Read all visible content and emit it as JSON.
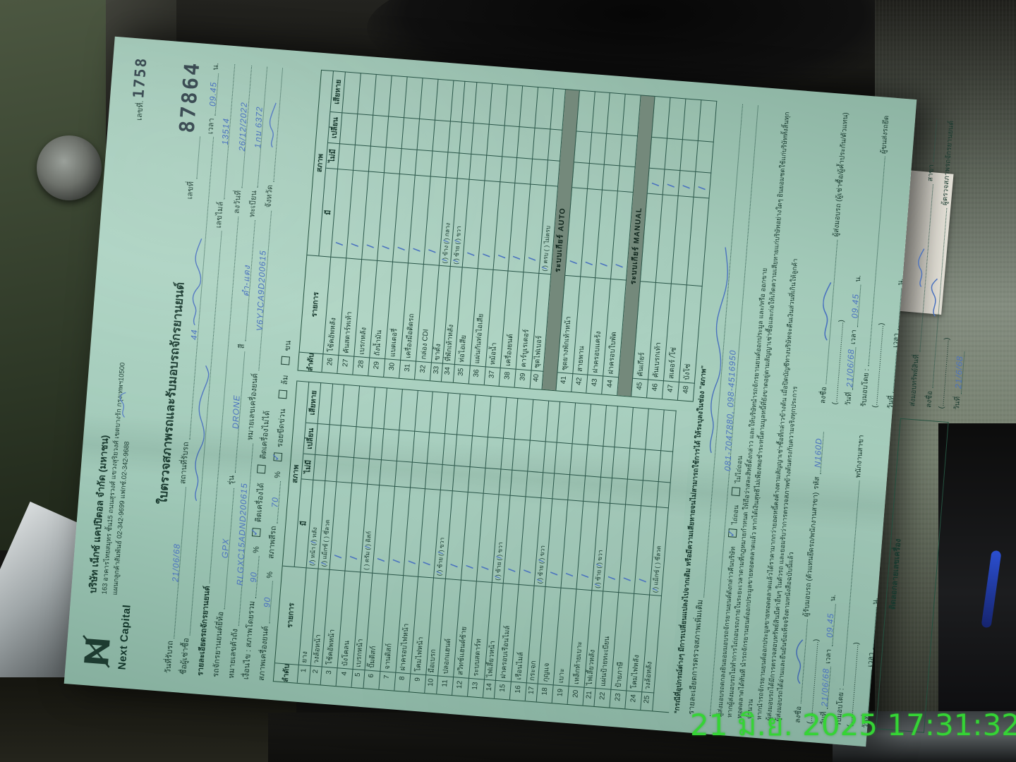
{
  "timestamp": "21 มิ.ย. 2025 17:31:32",
  "colors": {
    "paper": "#a4cbbb",
    "ink": "#17382d",
    "pen": "#4a72bf",
    "stamp": "#2c3e46",
    "timestamp": "#35d435",
    "band": "#74897b"
  },
  "header": {
    "logo_text": "Next Capital",
    "company": "บริษัท เน็กซ์ แคปปิตอล จำกัด (มหาชน)",
    "address": "163 อาคารไทยสมุทร ชั้น15 ถนนสุรวงศ์ แขวงสุริยวงศ์ เขตบางรัก กรุงเทพฯ10500",
    "phone": "แผนกลูกค้าสัมพันธ์ 02-342-9699 แฟกซ์.02-342-9688",
    "doc_no_label": "เลขที่.",
    "stamp_small": "1758",
    "title": "ใบตรวจสภาพรถและรับมอบรถจักรยานยนต์",
    "no_label": "เลขที่",
    "stamp_big": "87864"
  },
  "info": {
    "l1": {
      "a": "วันที่รับรถ",
      "av": "21/06/68",
      "b": "สถานที่รับรถ",
      "bv": "44",
      "c": "เวลา",
      "cv": "09.45",
      "d": "น."
    },
    "l2": {
      "a": "ชื่อผู้เช่าซื้อ",
      "b": "เลขไมล์",
      "bv": "13514"
    },
    "l3": {
      "a": "รายละเอียดรถจักรยานยนต์",
      "b": "ลงวันที่",
      "bv": "26/12/2022"
    },
    "l4": {
      "a": "รถจักรยานยนต์ยี่ห้อ",
      "av": "GPX",
      "b": "รุ่น",
      "bv": "DRONE",
      "c": "สี",
      "cv": "ดำ-แดง",
      "d": "ทะเบียน",
      "dv": "1กบ 6372"
    },
    "l5": {
      "a": "หมายเลขตัวถัง",
      "av": "RLGXC15ADND200615",
      "b": "หมายเลขเครื่องยนต์",
      "bv": "V6YJCA9D200615",
      "c": "จังหวัด"
    }
  },
  "condition": {
    "prefix": "เงื่อนไข : สภาพโดยรวม",
    "overall_v": "90",
    "pct": "%",
    "cb_start": "ติดเครื่องได้",
    "cb_nostart": "ติดเครื่องไม่ได้",
    "start_checked": true,
    "nostart_checked": false,
    "engine": "สภาพเครื่องยนต์",
    "engine_v": "90",
    "paint": "สภาพสีรถ",
    "paint_v": "70",
    "cb_scratch": "รอยขีดข่วน",
    "scratch_checked": true,
    "cb_fall": "ล้ม",
    "fall_checked": false,
    "cb_carry": "ขน",
    "carry_checked": false
  },
  "table": {
    "headers": {
      "no": "ลำดับ",
      "item": "รายการ",
      "cond": "สภาพ",
      "have": "มี",
      "nothave": "ไม่มี",
      "change": "เปลี่ยน",
      "damage": "เสียหาย"
    },
    "left_rows": [
      {
        "no": 1,
        "item": "ยาง",
        "opts": [
          {
            "t": "หน้า",
            "c": true
          },
          {
            "t": "หลัง",
            "c": true
          }
        ]
      },
      {
        "no": 2,
        "item": "วงล้อหน้า",
        "opts": [
          {
            "t": "แม็กซ์",
            "c": true
          },
          {
            "t": "ซี่ลวด",
            "c": false
          }
        ]
      },
      {
        "no": 3,
        "item": "โช้คอัพหน้า",
        "m": "have"
      },
      {
        "no": 4,
        "item": "บังโคลน",
        "m": "have"
      },
      {
        "no": 5,
        "item": "เบรกหน้า",
        "opts": [
          {
            "t": "ดรัม",
            "c": false
          },
          {
            "t": "ดิสก์",
            "c": true
          }
        ]
      },
      {
        "no": 6,
        "item": "ปั๊มดิสก์",
        "m": "have"
      },
      {
        "no": 7,
        "item": "จานดิสก์",
        "m": "have"
      },
      {
        "no": 8,
        "item": "ฝาครอบไฟหน้า",
        "m": "have"
      },
      {
        "no": 9,
        "item": "โคมไฟหน้า",
        "m": "have"
      },
      {
        "no": 10,
        "item": "มือเบรก",
        "opts": [
          {
            "t": "ซ้าย",
            "c": true
          },
          {
            "t": "ขวา",
            "c": true
          }
        ]
      },
      {
        "no": 11,
        "item": "ปลอกแฮนด์",
        "m": "have"
      },
      {
        "no": 12,
        "item": "สวิทช์แฮนด์ซ้าย",
        "m": "have"
      },
      {
        "no": 13,
        "item": "ระบบสตาร์ท",
        "m": "have"
      },
      {
        "no": 14,
        "item": "ไฟเลี้ยวหน้า",
        "opts": [
          {
            "t": "ซ้าย",
            "c": true
          },
          {
            "t": "ขวา",
            "c": true
          }
        ]
      },
      {
        "no": 15,
        "item": "ฝาครอบเรือนไมล์",
        "m": "have"
      },
      {
        "no": 16,
        "item": "เรือนไมล์",
        "m": "have"
      },
      {
        "no": 17,
        "item": "กระจก",
        "opts": [
          {
            "t": "ซ้าย",
            "c": true
          },
          {
            "t": "ขวา",
            "c": true
          }
        ]
      },
      {
        "no": 18,
        "item": "กุญแจ",
        "m": "have"
      },
      {
        "no": 19,
        "item": "เบาะ",
        "m": "have"
      },
      {
        "no": 20,
        "item": "เหล็กท้ายเบาะ",
        "m": "have"
      },
      {
        "no": 21,
        "item": "ไฟเลี้ยวหลัง",
        "opts": [
          {
            "t": "ซ้าย",
            "c": true
          },
          {
            "t": "ขวา",
            "c": true
          }
        ]
      },
      {
        "no": 22,
        "item": "แผ่นป้ายทะเบียน",
        "m": "have"
      },
      {
        "no": 23,
        "item": "ป้ายภาษี",
        "m": "have"
      },
      {
        "no": 24,
        "item": "โคมไฟหลัง",
        "m": "have"
      },
      {
        "no": 25,
        "item": "วงล้อหลัง",
        "opts": [
          {
            "t": "แม็กซ์",
            "c": true
          },
          {
            "t": "ซี่ลวด",
            "c": false
          }
        ]
      }
    ],
    "right_rows": [
      {
        "no": 26,
        "item": "โช้คอัพหลัง",
        "m": "have"
      },
      {
        "no": 27,
        "item": "คันสตาร์ทเท้า",
        "m": "have"
      },
      {
        "no": 28,
        "item": "เบรกหลัง",
        "m": "have"
      },
      {
        "no": 29,
        "item": "ถังน้ำมัน",
        "m": "have"
      },
      {
        "no": 30,
        "item": "แบตเตอรี่",
        "m": "have"
      },
      {
        "no": 31,
        "item": "เครื่องมือติดรถ",
        "m": "have"
      },
      {
        "no": 32,
        "item": "กล่อง CDI",
        "m": "have"
      },
      {
        "no": 33,
        "item": "ขาตั้ง",
        "opts": [
          {
            "t": "ข้าง",
            "c": true
          },
          {
            "t": "กลาง",
            "c": true
          }
        ]
      },
      {
        "no": 34,
        "item": "ที่พักเท้าหลัง",
        "opts": [
          {
            "t": "ซ้าย",
            "c": true
          },
          {
            "t": "ขวา",
            "c": true
          }
        ]
      },
      {
        "no": 35,
        "item": "ท่อไอเสีย",
        "m": "have"
      },
      {
        "no": 36,
        "item": "แผ่นกันท่อไอเสีย",
        "m": "have"
      },
      {
        "no": 37,
        "item": "หม้อน้ำ",
        "m": "have"
      },
      {
        "no": 38,
        "item": "เครื่องยนต์",
        "m": "have"
      },
      {
        "no": 39,
        "item": "คาร์บูเรเตอร์",
        "m": "have"
      },
      {
        "no": 40,
        "item": "ชุดไฟเบอร์",
        "opts": [
          {
            "t": "ครบ",
            "c": true
          },
          {
            "t": "ไม่ครบ",
            "c": false
          }
        ]
      },
      {
        "band": "ระบบเกียร์ AUTO"
      },
      {
        "no": 41,
        "item": "ชุดยางพักเท้าหน้า",
        "m": "have"
      },
      {
        "no": 42,
        "item": "สายพาน",
        "m": "have"
      },
      {
        "no": 43,
        "item": "ฝาครอบแคร้ง",
        "m": "have"
      },
      {
        "no": 44,
        "item": "ฝาครอบใบพัด",
        "m": "have"
      },
      {
        "band": "ระบบเกียร์ MANUAL"
      },
      {
        "no": 45,
        "item": "คันเกียร์",
        "m": "not"
      },
      {
        "no": 46,
        "item": "คันเบรกเท้า",
        "m": "not"
      },
      {
        "no": 47,
        "item": "สเตอร์ /โซ่",
        "m": "not"
      },
      {
        "no": 48,
        "item": "บังโซ่",
        "m": "not"
      }
    ]
  },
  "notes": {
    "star": "*กรณีที่อุปกรณ์ต่างๆ มีการเปลี่ยนแปลงไปจากเดิม หรือมีความเสียหายจนไม่สามารถใช้การได้ ให้ระบุลงในช่อง \"สภาพ\"",
    "extra_label": "รายละเอียดการตรวจสภาพเพิ่มเติม",
    "extra_hand2": "081-7047880, 098-4516950"
  },
  "agreement": {
    "l1": "ผู้ส่งมอบรถตกลงยินยอมมอบรถจักรยานยนต์ดังกล่าวคืนบริษัท",
    "redeem_yes": "ไถ่ถอน",
    "redeem_no": "ไม่ไถ่ถอน",
    "redeem_yes_checked": true,
    "redeem_no_checked": false,
    "l2": "หากผู้ส่งมอบรถไม่ทำการไถ่ถอนรถภายในระยะเวลาตามที่กฎหมายกำหนด ให้ถือว่าสละสิทธิ์ดังกล่าว และให้บริษัทนำรถจักรยานยนต์ออกประมูล และ/หรือ ออกขาย",
    "l3": "ทอดตลาดได้ทันที นำรถจักรยานยนต์ออกประมูลขายทอดตลาดแล้ว หากได้เงินสุทธิไม่เพียงพอชำระหนี้ตามมูลหนี้ที่ยังขาดอยู่ตามสัญญาเช่าซื้อและก่อให้เกิดความเสียหายแก่บริษัทอย่างใดๆ ยินยอมชดใช้แก่บริษัททั้งสิ้นทุกจำนวน",
    "l4": "หากนำรถจักรยานยนต์ออกประมูลขายทอดตลาดแล้วได้ราคามากกว่ายอดหนี้คงค้างตามสัญญาเช่าซื้อที่กล่าวข้างต้น เมื่อปิดบัญชีทางบริษัทจะคืนเงินส่วนที่เกินให้ลูกค้า",
    "l5": "ผู้ส่งมอบรถได้มีการตรวจสอบทรัพย์สินมีค่าอื่นๆ ในตัวรถ และยอมรับว่าการตรวจสภาพข้างต้นตรงกับความจริงทุกประการ",
    "l6": "ผู้ส่งมอบรถได้อ่านและยืนยันข้อเท็จจริงตามหนังสือฉบับนี้แล้ว"
  },
  "signatures": {
    "left": {
      "sign_label": "ลงชื่อ",
      "role": "ผู้รับมอบรถ (ตัวแทนยึดรถ/พนักงานสาขา)",
      "code_label": "รหัส",
      "code": "N160D",
      "paren": "(.........................................)",
      "date_label": "วันที่",
      "date": "21/06/68",
      "time_label": "เวลา",
      "time": "09.45",
      "unit": "น.",
      "by_label": "รับมอบโดย :",
      "by_role": "พนักงานสาขา",
      "paren2": "(.........................................)",
      "date2_label": "วันที่",
      "time2_label": "เวลา",
      "unit2": "น."
    },
    "right": {
      "sign_label": "ลงชื่อ",
      "role": "ผู้ส่งมอบรถ (ผู้เช่าซื้อ/ผู้ค้ำประกัน/ตัวแทน)",
      "paren": "(.........................................)",
      "date_label": "วันที่",
      "date": "21/06/68",
      "time_label": "เวลา",
      "time": "09.45",
      "unit": "น.",
      "by_label": "รับมอบโดย :",
      "by_role": "ผู้ขนส่งรถยึด",
      "paren2": "(.........................................)",
      "date2_label": "วันที่",
      "time2_label": "เวลา",
      "unit2": "น."
    }
  },
  "bottom": {
    "box_label": "ติดลอกลายเลขเครื่อง",
    "deliver_label": "ส่งมอบทรัพย์สินที่",
    "branch_label": "สาขา",
    "sign_label": "ลงชื่อ",
    "inspector_role": "ผู้ตรวจสภาพรถจักรยานยนต์",
    "paren": "(..................................)",
    "date_label": "วันที่",
    "date": "21/6/68"
  }
}
